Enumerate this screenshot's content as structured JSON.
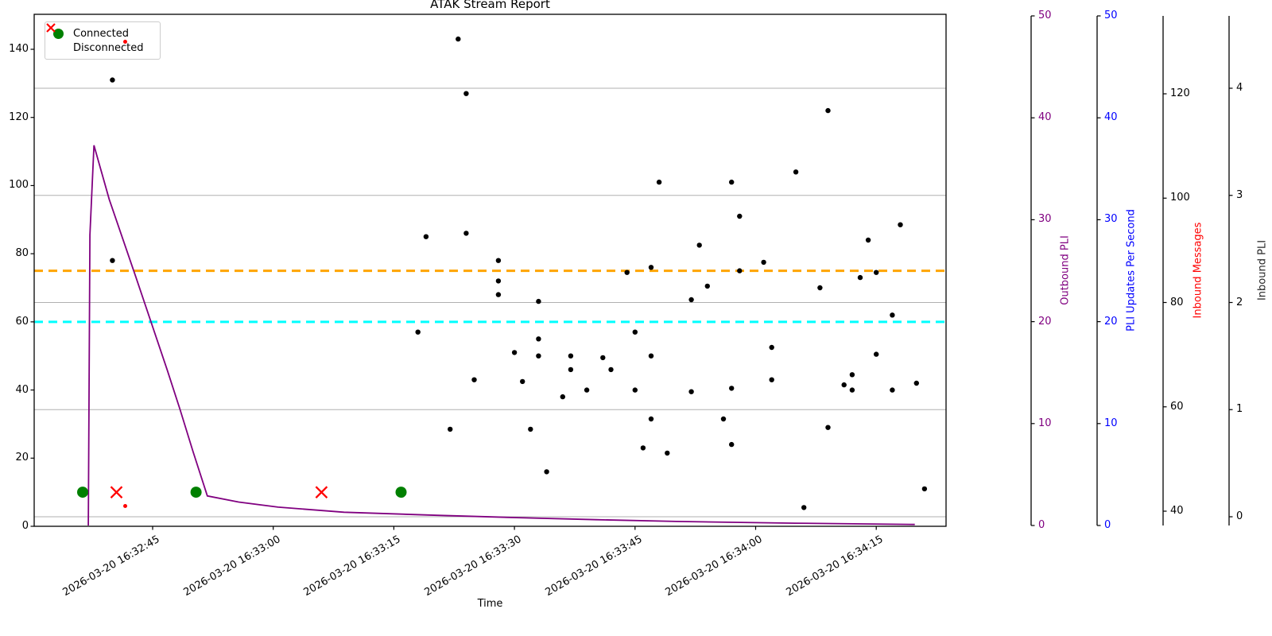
{
  "title": "ATAK Stream Report",
  "xlabel": "Time",
  "legend": {
    "items": [
      {
        "label": "Connected",
        "marker": "circle",
        "color": "#008000"
      },
      {
        "label": "Disconnected",
        "marker": "x",
        "color": "#ff0000"
      }
    ]
  },
  "axes": {
    "x": {
      "ticks": [
        {
          "time": "16:32:45",
          "label": "2026-03-20 16:32:45"
        },
        {
          "time": "16:33:00",
          "label": "2026-03-20 16:33:00"
        },
        {
          "time": "16:33:15",
          "label": "2026-03-20 16:33:15"
        },
        {
          "time": "16:33:30",
          "label": "2026-03-20 16:33:30"
        },
        {
          "time": "16:33:45",
          "label": "2026-03-20 16:33:45"
        },
        {
          "time": "16:34:00",
          "label": "2026-03-20 16:34:00"
        },
        {
          "time": "16:34:15",
          "label": "2026-03-20 16:34:15"
        }
      ]
    },
    "y_left": {
      "ticks": [
        0,
        20,
        40,
        60,
        80,
        100,
        120,
        140
      ],
      "color": "#000000"
    },
    "outbound": {
      "label": "Outbound PLI",
      "color": "#800080",
      "ticks": [
        0,
        10,
        20,
        30,
        40,
        50
      ]
    },
    "pli_updates": {
      "label": "PLI Updates Per Second",
      "color": "#0000ff",
      "ticks": [
        0,
        10,
        20,
        30,
        40,
        50
      ]
    },
    "inbound_msgs": {
      "label": "Inbound Messages",
      "label_color": "#ff0000",
      "tick_color": "#000000",
      "ticks": [
        40,
        60,
        80,
        100,
        120
      ]
    },
    "inbound_pli": {
      "label": "Inbound PLI",
      "label_color": "#262626",
      "tick_color": "#000000",
      "ticks": [
        0,
        1,
        2,
        3,
        4
      ]
    }
  },
  "chart_data": {
    "type": "scatter+line",
    "title": "ATAK Stream Report",
    "xlabel": "Time",
    "x_range": [
      "2026-03-20 16:32:30",
      "2026-03-20 16:34:24"
    ],
    "grid": "horizontal, from Inbound PLI integer ticks",
    "hlines": [
      {
        "name": "mean-upper-threshold",
        "axis": "left",
        "value": 75,
        "color": "#ffa500",
        "style": "dashed"
      },
      {
        "name": "mean-lower-threshold",
        "axis": "left",
        "value": 60,
        "color": "#00ffff",
        "style": "dashed"
      }
    ],
    "series": [
      {
        "name": "inbound-scatter",
        "type": "scatter",
        "axis": "left",
        "color": "#000000",
        "marker": "dot",
        "points": [
          [
            "16:32:40",
            131
          ],
          [
            "16:32:40",
            78
          ],
          [
            "16:33:23",
            143
          ],
          [
            "16:33:24",
            127
          ],
          [
            "16:33:19",
            85
          ],
          [
            "16:33:24",
            86
          ],
          [
            "16:33:28",
            78
          ],
          [
            "16:33:28",
            72
          ],
          [
            "16:33:28",
            68
          ],
          [
            "16:33:33",
            66
          ],
          [
            "16:33:18",
            57
          ],
          [
            "16:33:33",
            55
          ],
          [
            "16:33:30",
            51
          ],
          [
            "16:33:33",
            50
          ],
          [
            "16:33:37",
            50
          ],
          [
            "16:33:41",
            49.5
          ],
          [
            "16:33:37",
            46
          ],
          [
            "16:33:42",
            46
          ],
          [
            "16:33:45",
            57
          ],
          [
            "16:33:25",
            43
          ],
          [
            "16:33:31",
            42.5
          ],
          [
            "16:33:39",
            40
          ],
          [
            "16:33:45",
            40
          ],
          [
            "16:33:36",
            38
          ],
          [
            "16:33:47",
            31.5
          ],
          [
            "16:33:22",
            28.5
          ],
          [
            "16:33:32",
            28.5
          ],
          [
            "16:33:46",
            23
          ],
          [
            "16:33:34",
            16
          ],
          [
            "16:33:49",
            21.5
          ],
          [
            "16:33:56",
            31.5
          ],
          [
            "16:33:57",
            24
          ],
          [
            "16:34:09",
            29
          ],
          [
            "16:34:21",
            11
          ],
          [
            "16:34:06",
            5.5
          ],
          [
            "16:33:44",
            74.5
          ],
          [
            "16:33:47",
            76
          ],
          [
            "16:33:54",
            70.5
          ],
          [
            "16:34:08",
            70
          ],
          [
            "16:33:52",
            66.5
          ],
          [
            "16:34:17",
            62
          ],
          [
            "16:34:02",
            52.5
          ],
          [
            "16:33:47",
            50
          ],
          [
            "16:34:15",
            50.5
          ],
          [
            "16:34:02",
            43
          ],
          [
            "16:34:12",
            44.5
          ],
          [
            "16:34:11",
            41.5
          ],
          [
            "16:34:12",
            40
          ],
          [
            "16:34:20",
            42
          ],
          [
            "16:34:17",
            40
          ],
          [
            "16:33:57",
            40.5
          ],
          [
            "16:33:52",
            39.5
          ],
          [
            "16:34:09",
            122
          ],
          [
            "16:34:05",
            104
          ],
          [
            "16:33:48",
            101
          ],
          [
            "16:33:57",
            101
          ],
          [
            "16:33:58",
            91
          ],
          [
            "16:33:53",
            82.5
          ],
          [
            "16:34:14",
            84
          ],
          [
            "16:34:18",
            88.5
          ],
          [
            "16:33:58",
            75
          ],
          [
            "16:34:01",
            77.5
          ],
          [
            "16:34:15",
            74.5
          ],
          [
            "16:34:13",
            73
          ]
        ]
      },
      {
        "name": "outbound-pli-line",
        "type": "line",
        "axis": "outbound",
        "color": "#800080",
        "points": [
          [
            "16:32:37.0",
            0
          ],
          [
            "16:32:37.2",
            28.5
          ],
          [
            "16:32:37.7",
            37.3
          ],
          [
            "16:32:39.6",
            32.0
          ],
          [
            "16:32:42.9",
            24.4
          ],
          [
            "16:32:46.8",
            15.3
          ],
          [
            "16:32:48.4",
            11.4
          ],
          [
            "16:32:50.0",
            7.3
          ],
          [
            "16:32:51.8",
            2.9
          ],
          [
            "16:32:55.7",
            2.3
          ],
          [
            "16:33:00.6",
            1.8
          ],
          [
            "16:33:08.8",
            1.3
          ],
          [
            "16:33:20.4",
            1.0
          ],
          [
            "16:33:30.3",
            0.77
          ],
          [
            "16:33:40.2",
            0.57
          ],
          [
            "16:33:50.1",
            0.4
          ],
          [
            "16:34:04.9",
            0.23
          ],
          [
            "16:34:19.8",
            0.1
          ]
        ]
      },
      {
        "name": "inbound-messages-dots",
        "type": "scatter",
        "axis": "inbound_msgs",
        "color": "#ff0000",
        "marker": "dot-small",
        "points": [
          [
            "16:32:41.6",
            130
          ],
          [
            "16:32:41.6",
            41
          ]
        ]
      },
      {
        "name": "connected-events",
        "type": "scatter",
        "axis": "left",
        "color": "#008000",
        "marker": "circle-large",
        "points": [
          [
            "16:32:36.3",
            10
          ],
          [
            "16:32:50.4",
            10
          ],
          [
            "16:33:15.9",
            10
          ]
        ]
      },
      {
        "name": "disconnected-events",
        "type": "scatter",
        "axis": "left",
        "color": "#ff0000",
        "marker": "x",
        "points": [
          [
            "16:32:40.5",
            10
          ],
          [
            "16:33:06.0",
            10
          ]
        ]
      }
    ]
  }
}
